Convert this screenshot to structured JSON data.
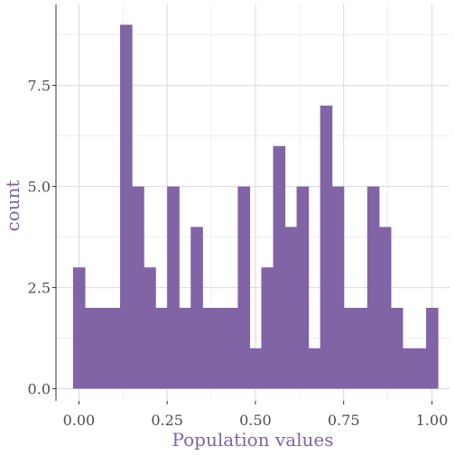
{
  "chart_data": {
    "type": "bar",
    "xlabel": "Population values",
    "ylabel": "count",
    "xlim": [
      -0.065,
      1.05
    ],
    "ylim": [
      -0.3,
      9.5
    ],
    "x_ticks": [
      0.0,
      0.25,
      0.5,
      0.75,
      1.0
    ],
    "x_tick_labels": [
      "0.00",
      "0.25",
      "0.50",
      "0.75",
      "1.00"
    ],
    "y_ticks": [
      0.0,
      2.5,
      5.0,
      7.5
    ],
    "y_tick_labels": [
      "0.0",
      "2.5",
      "5.0",
      "7.5"
    ],
    "bin_width": 0.0333,
    "bin_centers": [
      0.0,
      0.0333,
      0.0667,
      0.1,
      0.1333,
      0.1667,
      0.2,
      0.2333,
      0.2667,
      0.3,
      0.3333,
      0.3667,
      0.4,
      0.4333,
      0.4667,
      0.5,
      0.5333,
      0.5667,
      0.6,
      0.6333,
      0.6667,
      0.7,
      0.7333,
      0.7667,
      0.8,
      0.8333,
      0.8667,
      0.9,
      0.9333,
      0.9667,
      1.0
    ],
    "counts": [
      3,
      2,
      2,
      2,
      9,
      5,
      3,
      2,
      5,
      2,
      4,
      2,
      2,
      2,
      5,
      1,
      3,
      6,
      4,
      5,
      1,
      7,
      5,
      2,
      2,
      5,
      4,
      2,
      1,
      1,
      2
    ],
    "bar_color": "#8064a6",
    "title_color": "#8064a6",
    "grid": true,
    "grid_color": "#d9d9d9"
  }
}
